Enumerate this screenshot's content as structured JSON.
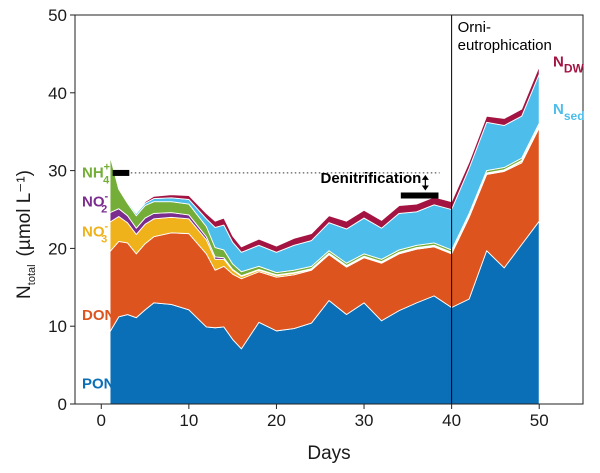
{
  "chart_data": {
    "type": "area",
    "xlabel": "Days",
    "ylabel": {
      "main": "N",
      "sub": "total",
      "unit": "(µmol L⁻¹)"
    },
    "xlim": [
      -3,
      55
    ],
    "ylim": [
      0,
      50
    ],
    "xticks": [
      0,
      10,
      20,
      30,
      40,
      50
    ],
    "yticks": [
      0,
      10,
      20,
      30,
      40,
      50
    ],
    "grid": false,
    "x": [
      1,
      2,
      3,
      4,
      5,
      6,
      8,
      10,
      12,
      13,
      14,
      15,
      16,
      18,
      20,
      22,
      24,
      26,
      28,
      30,
      32,
      34,
      36,
      38,
      40,
      42,
      44,
      46,
      48,
      50
    ],
    "series": [
      {
        "name": "PON",
        "color": "#0b6fb8",
        "values": [
          9.3,
          11.2,
          11.5,
          11.1,
          12.1,
          13.0,
          12.8,
          12.1,
          9.9,
          9.8,
          9.9,
          8.3,
          7.1,
          10.5,
          9.4,
          9.7,
          10.4,
          13.3,
          11.5,
          13.0,
          10.7,
          12.0,
          13.0,
          13.9,
          12.4,
          13.5,
          19.7,
          17.5,
          20.5,
          23.5
        ]
      },
      {
        "name": "DON",
        "color": "#de541e",
        "values": [
          10.3,
          9.7,
          9.2,
          8.2,
          8.5,
          8.5,
          9.2,
          9.8,
          9.4,
          7.4,
          7.8,
          8.4,
          9.0,
          6.5,
          6.9,
          6.9,
          6.8,
          5.9,
          6.1,
          5.8,
          7.4,
          7.3,
          6.9,
          6.3,
          6.9,
          10.5,
          9.8,
          12.4,
          10.5,
          12.0
        ]
      },
      {
        "name": "NO3-",
        "color": "#f0b21a",
        "values": [
          3.8,
          3.2,
          2.6,
          2.5,
          2.5,
          2.3,
          2.0,
          1.9,
          1.8,
          1.4,
          0.9,
          0.5,
          0.3,
          0.2,
          0.2,
          0.2,
          0.1,
          0.1,
          0.1,
          0.1,
          0.1,
          0.1,
          0.1,
          0.1,
          0.1,
          0.1,
          0.1,
          0.1,
          0.2,
          0.2
        ]
      },
      {
        "name": "NO2-",
        "color": "#7b2d8e",
        "values": [
          1.2,
          1.0,
          0.9,
          0.8,
          0.8,
          0.7,
          0.6,
          0.5,
          0.4,
          0.3,
          0.2,
          0.1,
          0.1,
          0.1,
          0.1,
          0.1,
          0.1,
          0.1,
          0.1,
          0.1,
          0.1,
          0.1,
          0.1,
          0.1,
          0.1,
          0.1,
          0.1,
          0.1,
          0.1,
          0.1
        ]
      },
      {
        "name": "NH4+",
        "color": "#74ad37",
        "values": [
          7.3,
          2.5,
          1.6,
          1.6,
          1.6,
          1.5,
          1.4,
          1.4,
          1.3,
          1.2,
          1.0,
          0.7,
          0.5,
          0.4,
          0.3,
          0.3,
          0.3,
          0.3,
          0.3,
          0.3,
          0.3,
          0.3,
          0.3,
          0.3,
          0.3,
          0.3,
          0.3,
          0.3,
          0.3,
          0.3
        ]
      },
      {
        "name": "Nsed",
        "color": "#4dbeeb",
        "values": [
          0.0,
          0.1,
          0.2,
          0.3,
          0.3,
          0.4,
          0.5,
          0.6,
          1.0,
          2.6,
          3.2,
          2.8,
          2.5,
          2.7,
          2.6,
          3.2,
          3.3,
          3.6,
          4.4,
          4.6,
          4.0,
          4.7,
          4.3,
          4.9,
          5.2,
          5.8,
          6.2,
          5.4,
          5.4,
          6.3
        ]
      },
      {
        "name": "NDW",
        "color": "#a31442",
        "values": [
          0.0,
          0.0,
          0.0,
          0.1,
          0.2,
          0.3,
          0.4,
          0.5,
          0.7,
          0.8,
          0.9,
          0.8,
          0.7,
          0.8,
          0.8,
          0.9,
          0.9,
          0.9,
          1.0,
          1.0,
          1.0,
          1.0,
          1.0,
          1.0,
          1.0,
          0.8,
          0.8,
          0.9,
          0.9,
          1.0
        ]
      }
    ],
    "annotations": {
      "denitrification": "Denitrification",
      "event": [
        "Orni-",
        "eutrophication"
      ],
      "event_x": 40,
      "reference_y": 29.7,
      "reference_x": [
        2,
        40
      ],
      "bar_start_y": 29.7,
      "bar_end_y": 26.8,
      "denit_arrow_x": 37
    },
    "labels": {
      "PON": "PON",
      "DON": "DON",
      "NO3": {
        "base": "NO",
        "sub": "3",
        "sup": "-"
      },
      "NO2": {
        "base": "NO",
        "sub": "2",
        "sup": "-"
      },
      "NH4": {
        "base": "NH",
        "sub": "4",
        "sup": "+"
      },
      "Nsed": {
        "base": "N",
        "sub": "sed"
      },
      "NDW": {
        "base": "N",
        "sub": "DW"
      }
    }
  }
}
